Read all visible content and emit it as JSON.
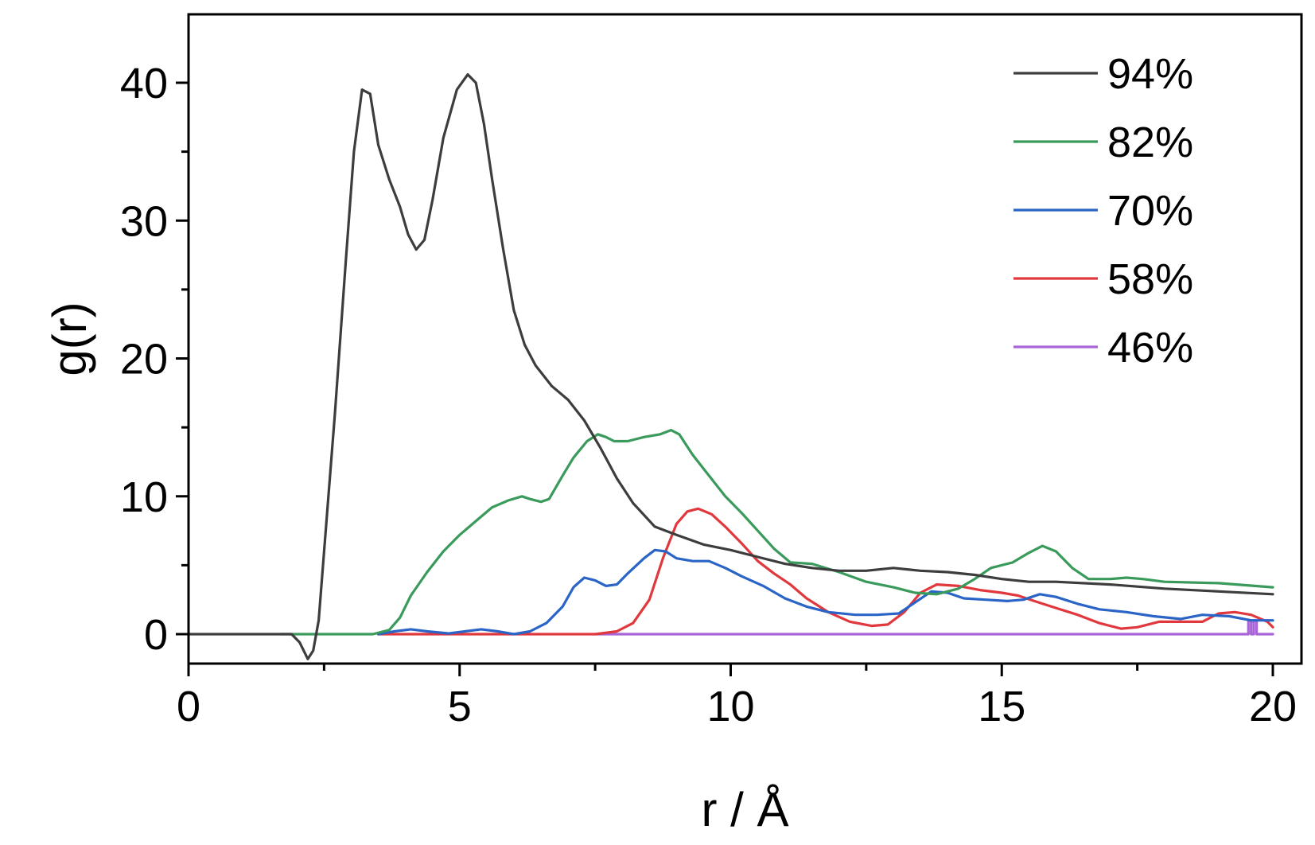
{
  "chart_data": {
    "type": "line",
    "title": "",
    "xlabel": "r / Å",
    "ylabel": "g(r)",
    "xlim": [
      0,
      20.5
    ],
    "ylim": [
      -2,
      45
    ],
    "xticks": [
      0,
      5,
      10,
      15,
      20
    ],
    "xtick_labels": [
      "0",
      "5",
      "10",
      "15",
      "20"
    ],
    "yticks": [
      0,
      10,
      20,
      30,
      40
    ],
    "ytick_labels": [
      "0",
      "10",
      "20",
      "30",
      "40"
    ],
    "x_minor_step": 2.5,
    "y_minor_step": 5,
    "grid": false,
    "legend": "top-right",
    "series": [
      {
        "name": "94%",
        "color": "#3d3d3d",
        "points": [
          [
            0,
            0
          ],
          [
            1.5,
            0
          ],
          [
            1.9,
            0
          ],
          [
            2.05,
            -0.6
          ],
          [
            2.2,
            -1.8
          ],
          [
            2.3,
            -1.2
          ],
          [
            2.4,
            1
          ],
          [
            2.5,
            6
          ],
          [
            2.7,
            16
          ],
          [
            2.9,
            27
          ],
          [
            3.05,
            35
          ],
          [
            3.2,
            39.5
          ],
          [
            3.35,
            39.2
          ],
          [
            3.5,
            35.5
          ],
          [
            3.7,
            33
          ],
          [
            3.9,
            31
          ],
          [
            4.05,
            29
          ],
          [
            4.2,
            27.9
          ],
          [
            4.35,
            28.6
          ],
          [
            4.5,
            31.5
          ],
          [
            4.7,
            36
          ],
          [
            4.95,
            39.5
          ],
          [
            5.15,
            40.6
          ],
          [
            5.3,
            40
          ],
          [
            5.45,
            37
          ],
          [
            5.6,
            33
          ],
          [
            5.8,
            28
          ],
          [
            6.0,
            23.5
          ],
          [
            6.2,
            21
          ],
          [
            6.4,
            19.5
          ],
          [
            6.7,
            18
          ],
          [
            7.0,
            17
          ],
          [
            7.3,
            15.5
          ],
          [
            7.6,
            13.5
          ],
          [
            7.9,
            11.3
          ],
          [
            8.2,
            9.5
          ],
          [
            8.6,
            7.8
          ],
          [
            9.0,
            7.2
          ],
          [
            9.5,
            6.5
          ],
          [
            10,
            6.1
          ],
          [
            10.5,
            5.6
          ],
          [
            11,
            5.1
          ],
          [
            11.5,
            4.8
          ],
          [
            12,
            4.6
          ],
          [
            12.5,
            4.6
          ],
          [
            13,
            4.8
          ],
          [
            13.5,
            4.6
          ],
          [
            14,
            4.5
          ],
          [
            14.5,
            4.3
          ],
          [
            15,
            4
          ],
          [
            15.5,
            3.8
          ],
          [
            16,
            3.8
          ],
          [
            17,
            3.6
          ],
          [
            18,
            3.3
          ],
          [
            19,
            3.1
          ],
          [
            20,
            2.9
          ]
        ]
      },
      {
        "name": "82%",
        "color": "#3a9a5b",
        "points": [
          [
            1.7,
            0
          ],
          [
            3.4,
            0
          ],
          [
            3.7,
            0.3
          ],
          [
            3.9,
            1.2
          ],
          [
            4.1,
            2.8
          ],
          [
            4.4,
            4.5
          ],
          [
            4.7,
            6
          ],
          [
            5.0,
            7.2
          ],
          [
            5.3,
            8.2
          ],
          [
            5.6,
            9.2
          ],
          [
            5.9,
            9.7
          ],
          [
            6.15,
            10
          ],
          [
            6.3,
            9.8
          ],
          [
            6.5,
            9.6
          ],
          [
            6.65,
            9.8
          ],
          [
            6.9,
            11.5
          ],
          [
            7.1,
            12.8
          ],
          [
            7.35,
            14
          ],
          [
            7.55,
            14.5
          ],
          [
            7.7,
            14.3
          ],
          [
            7.85,
            14
          ],
          [
            8.1,
            14
          ],
          [
            8.4,
            14.3
          ],
          [
            8.7,
            14.5
          ],
          [
            8.9,
            14.8
          ],
          [
            9.05,
            14.5
          ],
          [
            9.3,
            13
          ],
          [
            9.6,
            11.5
          ],
          [
            9.9,
            10
          ],
          [
            10.2,
            8.8
          ],
          [
            10.5,
            7.5
          ],
          [
            10.8,
            6.2
          ],
          [
            11.1,
            5.2
          ],
          [
            11.5,
            5.1
          ],
          [
            12,
            4.5
          ],
          [
            12.5,
            3.8
          ],
          [
            13,
            3.4
          ],
          [
            13.4,
            3
          ],
          [
            13.8,
            2.9
          ],
          [
            14.2,
            3.3
          ],
          [
            14.5,
            4
          ],
          [
            14.8,
            4.8
          ],
          [
            15.2,
            5.2
          ],
          [
            15.5,
            5.9
          ],
          [
            15.75,
            6.4
          ],
          [
            16.0,
            6
          ],
          [
            16.3,
            4.8
          ],
          [
            16.6,
            4
          ],
          [
            17,
            4
          ],
          [
            17.3,
            4.1
          ],
          [
            17.6,
            4
          ],
          [
            18,
            3.8
          ],
          [
            19,
            3.7
          ],
          [
            20,
            3.4
          ]
        ]
      },
      {
        "name": "70%",
        "color": "#2a64c7",
        "points": [
          [
            3.5,
            0
          ],
          [
            3.8,
            0.2
          ],
          [
            4.1,
            0.35
          ],
          [
            4.4,
            0.2
          ],
          [
            4.8,
            0.05
          ],
          [
            5.1,
            0.2
          ],
          [
            5.4,
            0.35
          ],
          [
            5.7,
            0.2
          ],
          [
            6.0,
            0
          ],
          [
            6.3,
            0.2
          ],
          [
            6.6,
            0.8
          ],
          [
            6.9,
            2
          ],
          [
            7.1,
            3.4
          ],
          [
            7.3,
            4.1
          ],
          [
            7.5,
            3.9
          ],
          [
            7.7,
            3.5
          ],
          [
            7.9,
            3.6
          ],
          [
            8.1,
            4.4
          ],
          [
            8.4,
            5.5
          ],
          [
            8.6,
            6.1
          ],
          [
            8.8,
            6
          ],
          [
            9.0,
            5.5
          ],
          [
            9.3,
            5.3
          ],
          [
            9.6,
            5.3
          ],
          [
            9.9,
            4.8
          ],
          [
            10.2,
            4.2
          ],
          [
            10.6,
            3.5
          ],
          [
            11,
            2.6
          ],
          [
            11.4,
            2
          ],
          [
            11.8,
            1.6
          ],
          [
            12.3,
            1.4
          ],
          [
            12.7,
            1.4
          ],
          [
            13.1,
            1.5
          ],
          [
            13.4,
            2.3
          ],
          [
            13.7,
            3.1
          ],
          [
            14.0,
            3
          ],
          [
            14.3,
            2.6
          ],
          [
            14.7,
            2.5
          ],
          [
            15.1,
            2.4
          ],
          [
            15.4,
            2.5
          ],
          [
            15.7,
            2.9
          ],
          [
            16.0,
            2.7
          ],
          [
            16.4,
            2.2
          ],
          [
            16.8,
            1.8
          ],
          [
            17.3,
            1.6
          ],
          [
            17.8,
            1.3
          ],
          [
            18.3,
            1.1
          ],
          [
            18.7,
            1.4
          ],
          [
            19.2,
            1.3
          ],
          [
            19.6,
            1
          ],
          [
            20,
            1
          ]
        ]
      },
      {
        "name": "58%",
        "color": "#e0383d",
        "points": [
          [
            3.5,
            0
          ],
          [
            6.5,
            0
          ],
          [
            7.5,
            0
          ],
          [
            7.9,
            0.2
          ],
          [
            8.2,
            0.8
          ],
          [
            8.5,
            2.5
          ],
          [
            8.75,
            5.5
          ],
          [
            9.0,
            8
          ],
          [
            9.2,
            8.9
          ],
          [
            9.4,
            9.1
          ],
          [
            9.65,
            8.7
          ],
          [
            9.9,
            7.8
          ],
          [
            10.2,
            6.6
          ],
          [
            10.5,
            5.3
          ],
          [
            10.8,
            4.4
          ],
          [
            11.1,
            3.6
          ],
          [
            11.4,
            2.6
          ],
          [
            11.8,
            1.6
          ],
          [
            12.2,
            0.9
          ],
          [
            12.6,
            0.6
          ],
          [
            12.9,
            0.7
          ],
          [
            13.2,
            1.6
          ],
          [
            13.5,
            3
          ],
          [
            13.8,
            3.6
          ],
          [
            14.2,
            3.5
          ],
          [
            14.6,
            3.2
          ],
          [
            15,
            3
          ],
          [
            15.3,
            2.8
          ],
          [
            15.6,
            2.4
          ],
          [
            16.0,
            1.9
          ],
          [
            16.4,
            1.4
          ],
          [
            16.8,
            0.8
          ],
          [
            17.2,
            0.4
          ],
          [
            17.5,
            0.5
          ],
          [
            17.9,
            0.9
          ],
          [
            18.3,
            0.9
          ],
          [
            18.7,
            0.9
          ],
          [
            19.0,
            1.5
          ],
          [
            19.3,
            1.6
          ],
          [
            19.6,
            1.4
          ],
          [
            19.9,
            0.9
          ],
          [
            20,
            0.5
          ]
        ]
      },
      {
        "name": "46%",
        "color": "#a765d8",
        "points": [
          [
            7.5,
            0
          ],
          [
            19.55,
            0
          ],
          [
            19.55,
            1
          ],
          [
            19.6,
            1
          ],
          [
            19.6,
            0
          ],
          [
            19.65,
            0
          ],
          [
            19.65,
            1
          ],
          [
            19.7,
            1
          ],
          [
            19.7,
            0
          ],
          [
            20,
            0
          ]
        ]
      }
    ]
  }
}
